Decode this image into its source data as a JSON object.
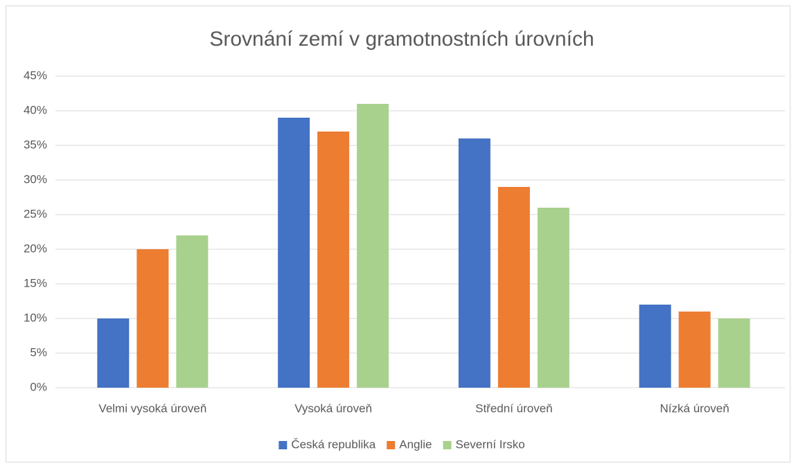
{
  "chart_data": {
    "type": "bar",
    "title": "Srovnání zemí v gramotnostních úrovních",
    "categories": [
      "Velmi vysoká úroveň",
      "Vysoká úroveň",
      "Střední úroveň",
      "Nízká úroveň"
    ],
    "series": [
      {
        "name": "Česká republika",
        "color": "#4472c4",
        "values": [
          10,
          39,
          36,
          12
        ]
      },
      {
        "name": "Anglie",
        "color": "#ed7d31",
        "values": [
          20,
          37,
          29,
          11
        ]
      },
      {
        "name": "Severní Irsko",
        "color": "#a9d18e",
        "values": [
          22,
          41,
          26,
          10
        ]
      }
    ],
    "ylim": [
      0,
      45
    ],
    "yticks": [
      {
        "value": 0,
        "label": "0%"
      },
      {
        "value": 5,
        "label": "5%"
      },
      {
        "value": 10,
        "label": "10%"
      },
      {
        "value": 15,
        "label": "15%"
      },
      {
        "value": 20,
        "label": "20%"
      },
      {
        "value": 25,
        "label": "25%"
      },
      {
        "value": 30,
        "label": "30%"
      },
      {
        "value": 35,
        "label": "35%"
      },
      {
        "value": 40,
        "label": "40%"
      },
      {
        "value": 45,
        "label": "45%"
      }
    ],
    "grid": true,
    "legend": "bottom"
  }
}
